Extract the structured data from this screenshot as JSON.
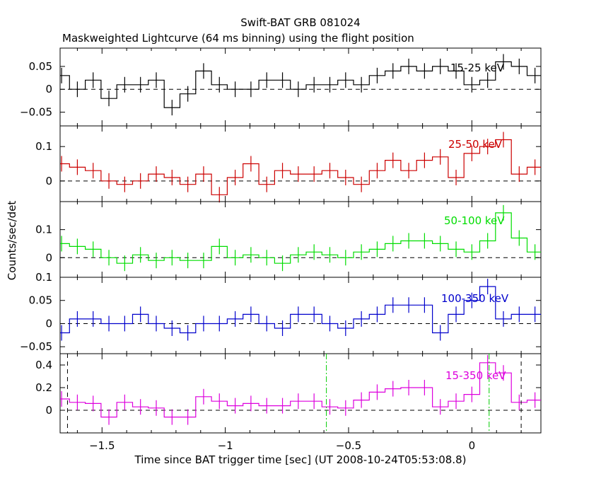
{
  "title": "Swift-BAT GRB 081024",
  "subtitle": "Maskweighted Lightcurve (64 ms binning) using the flight position",
  "xlabel": "Time since BAT trigger time [sec] (UT 2008-10-24T05:53:08.8)",
  "ylabel": "Counts/sec/det",
  "colors": {
    "15-25": "#000000",
    "25-50": "#cc0000",
    "50-100": "#00dd00",
    "100-350": "#0000cc",
    "15-350": "#dd00dd",
    "green_marker": "#00cc00"
  },
  "chart_data": {
    "type": "line",
    "step": true,
    "x_range": [
      -1.67,
      0.28
    ],
    "x_ticks": [
      -1.5,
      -1,
      -0.5,
      0
    ],
    "x_tick_labels": [
      "−1.5",
      "−1",
      "−0.5",
      "0"
    ],
    "x": [
      -1.664,
      -1.6,
      -1.536,
      -1.472,
      -1.408,
      -1.344,
      -1.28,
      -1.216,
      -1.152,
      -1.088,
      -1.024,
      -0.96,
      -0.896,
      -0.832,
      -0.768,
      -0.704,
      -0.64,
      -0.576,
      -0.512,
      -0.448,
      -0.384,
      -0.32,
      -0.256,
      -0.192,
      -0.128,
      -0.064,
      0.0,
      0.064,
      0.128,
      0.192,
      0.256
    ],
    "panels": [
      {
        "name": "15-25 keV",
        "color_key": "15-25",
        "ylim": [
          -0.08,
          0.09
        ],
        "y_ticks": [
          -0.05,
          0,
          0.05
        ],
        "y_tick_labels": [
          "−0.05",
          "0",
          "0.05"
        ],
        "values": [
          0.03,
          0.0,
          0.02,
          -0.02,
          0.01,
          0.01,
          0.02,
          -0.04,
          -0.01,
          0.04,
          0.01,
          0.0,
          0.0,
          0.02,
          0.02,
          0.0,
          0.01,
          0.01,
          0.02,
          0.01,
          0.03,
          0.04,
          0.05,
          0.04,
          0.05,
          0.04,
          0.01,
          0.02,
          0.06,
          0.05,
          0.03
        ]
      },
      {
        "name": "25-50 keV",
        "color_key": "25-50",
        "ylim": [
          -0.06,
          0.16
        ],
        "y_ticks": [
          0,
          0.1
        ],
        "y_tick_labels": [
          "0",
          "0.1"
        ],
        "values": [
          0.05,
          0.04,
          0.03,
          0.0,
          -0.01,
          0.0,
          0.02,
          0.01,
          -0.01,
          0.02,
          -0.04,
          0.01,
          0.05,
          -0.01,
          0.03,
          0.02,
          0.02,
          0.03,
          0.01,
          -0.01,
          0.03,
          0.06,
          0.03,
          0.06,
          0.07,
          0.01,
          0.08,
          0.1,
          0.12,
          0.02,
          0.04
        ]
      },
      {
        "name": "50-100 keV",
        "color_key": "50-100",
        "ylim": [
          -0.07,
          0.2
        ],
        "y_ticks": [
          0,
          0.1
        ],
        "y_tick_labels": [
          "0",
          "0.1"
        ],
        "values": [
          0.05,
          0.04,
          0.03,
          0.0,
          -0.02,
          0.01,
          -0.01,
          0.0,
          -0.01,
          -0.01,
          0.04,
          0.0,
          0.01,
          0.0,
          -0.02,
          0.01,
          0.02,
          0.01,
          0.0,
          0.02,
          0.03,
          0.05,
          0.06,
          0.06,
          0.05,
          0.03,
          0.02,
          0.06,
          0.16,
          0.07,
          0.02
        ]
      },
      {
        "name": "100-350 keV",
        "color_key": "100-350",
        "ylim": [
          -0.065,
          0.1
        ],
        "y_ticks": [
          -0.05,
          0,
          0.05,
          0.1
        ],
        "y_tick_labels": [
          "−0.05",
          "0",
          "0.05",
          "0.1"
        ],
        "values": [
          -0.02,
          0.01,
          0.01,
          0.0,
          0.0,
          0.02,
          0.0,
          -0.01,
          -0.02,
          0.0,
          0.0,
          0.01,
          0.02,
          0.0,
          -0.01,
          0.02,
          0.02,
          0.0,
          -0.01,
          0.01,
          0.02,
          0.04,
          0.04,
          0.04,
          -0.02,
          0.02,
          0.05,
          0.08,
          0.01,
          0.02,
          0.02
        ]
      },
      {
        "name": "15-350 keV",
        "color_key": "15-350",
        "ylim": [
          -0.2,
          0.5
        ],
        "y_ticks": [
          0,
          0.2,
          0.4
        ],
        "y_tick_labels": [
          "0",
          "0.2",
          "0.4"
        ],
        "values": [
          0.1,
          0.07,
          0.06,
          -0.06,
          0.07,
          0.03,
          0.02,
          -0.06,
          -0.06,
          0.12,
          0.08,
          0.04,
          0.06,
          0.04,
          0.04,
          0.08,
          0.08,
          0.03,
          0.02,
          0.09,
          0.16,
          0.19,
          0.2,
          0.2,
          0.03,
          0.08,
          0.14,
          0.42,
          0.33,
          0.07,
          0.09
        ],
        "markers": [
          {
            "x": -1.64,
            "style": "black-dashed"
          },
          {
            "x": 0.2,
            "style": "black-dashed"
          },
          {
            "x": -0.59,
            "style": "green-dashdot"
          },
          {
            "x": 0.07,
            "style": "green-dashdot"
          }
        ]
      }
    ]
  }
}
